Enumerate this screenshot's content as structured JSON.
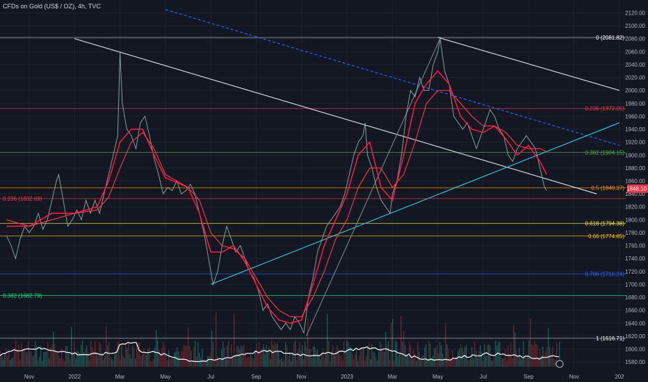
{
  "header": {
    "title": "CFDs on Gold (US$ / OZ), 4h, TVC"
  },
  "chart_data": {
    "type": "line",
    "title": "CFDs on Gold (US$ / OZ), 4h, TVC",
    "xlabel": "",
    "ylabel": "",
    "ylim": [
      1570,
      2130
    ],
    "y_ticks": [
      1580,
      1600,
      1620,
      1640,
      1660,
      1680,
      1700,
      1720,
      1740,
      1760,
      1780,
      1800,
      1820,
      1840,
      1860,
      1880,
      1900,
      1920,
      1940,
      1960,
      1980,
      2000,
      2020,
      2040,
      2060,
      2080,
      2100,
      2120
    ],
    "x_ticks": [
      {
        "label": "Nov",
        "t": 0.0
      },
      {
        "label": "2022",
        "t": 2.0
      },
      {
        "label": "Mar",
        "t": 4.0
      },
      {
        "label": "May",
        "t": 6.0
      },
      {
        "label": "Jul",
        "t": 8.0
      },
      {
        "label": "Sep",
        "t": 10.0
      },
      {
        "label": "Nov",
        "t": 12.0
      },
      {
        "label": "2023",
        "t": 14.0
      },
      {
        "label": "Mar",
        "t": 16.0
      },
      {
        "label": "May",
        "t": 18.0
      },
      {
        "label": "Jul",
        "t": 20.0
      },
      {
        "label": "Sep",
        "t": 22.0
      },
      {
        "label": "Nov",
        "t": 24.0
      },
      {
        "label": "202",
        "t": 26.0
      }
    ],
    "series": [
      {
        "type": "price",
        "values": [
          [
            -1.0,
            1775
          ],
          [
            -0.8,
            1760
          ],
          [
            -0.6,
            1740
          ],
          [
            -0.4,
            1770
          ],
          [
            -0.2,
            1790
          ],
          [
            0.0,
            1780
          ],
          [
            0.2,
            1790
          ],
          [
            0.4,
            1810
          ],
          [
            0.6,
            1785
          ],
          [
            0.8,
            1800
          ],
          [
            1.0,
            1830
          ],
          [
            1.2,
            1860
          ],
          [
            1.3,
            1870
          ],
          [
            1.5,
            1830
          ],
          [
            1.7,
            1790
          ],
          [
            1.9,
            1800
          ],
          [
            2.1,
            1815
          ],
          [
            2.3,
            1800
          ],
          [
            2.5,
            1830
          ],
          [
            2.7,
            1810
          ],
          [
            2.9,
            1830
          ],
          [
            3.1,
            1810
          ],
          [
            3.3,
            1840
          ],
          [
            3.5,
            1870
          ],
          [
            3.7,
            1900
          ],
          [
            3.9,
            1930
          ],
          [
            4.0,
            2060
          ],
          [
            4.1,
            1980
          ],
          [
            4.3,
            1940
          ],
          [
            4.5,
            1930
          ],
          [
            4.7,
            1910
          ],
          [
            4.9,
            1950
          ],
          [
            5.1,
            1960
          ],
          [
            5.3,
            1930
          ],
          [
            5.5,
            1895
          ],
          [
            5.7,
            1870
          ],
          [
            5.9,
            1840
          ],
          [
            6.1,
            1850
          ],
          [
            6.3,
            1845
          ],
          [
            6.5,
            1860
          ],
          [
            6.7,
            1840
          ],
          [
            6.9,
            1845
          ],
          [
            7.1,
            1855
          ],
          [
            7.3,
            1840
          ],
          [
            7.5,
            1810
          ],
          [
            7.7,
            1780
          ],
          [
            7.9,
            1740
          ],
          [
            8.1,
            1700
          ],
          [
            8.3,
            1720
          ],
          [
            8.5,
            1760
          ],
          [
            8.7,
            1790
          ],
          [
            8.9,
            1770
          ],
          [
            9.1,
            1750
          ],
          [
            9.3,
            1760
          ],
          [
            9.5,
            1740
          ],
          [
            9.7,
            1720
          ],
          [
            9.9,
            1710
          ],
          [
            10.1,
            1690
          ],
          [
            10.3,
            1660
          ],
          [
            10.5,
            1670
          ],
          [
            10.7,
            1650
          ],
          [
            10.9,
            1640
          ],
          [
            11.1,
            1630
          ],
          [
            11.3,
            1640
          ],
          [
            11.5,
            1630
          ],
          [
            11.7,
            1650
          ],
          [
            11.9,
            1640
          ],
          [
            12.1,
            1625
          ],
          [
            12.3,
            1680
          ],
          [
            12.5,
            1710
          ],
          [
            12.7,
            1750
          ],
          [
            12.9,
            1770
          ],
          [
            13.1,
            1790
          ],
          [
            13.3,
            1800
          ],
          [
            13.5,
            1810
          ],
          [
            13.7,
            1820
          ],
          [
            13.9,
            1840
          ],
          [
            14.1,
            1870
          ],
          [
            14.3,
            1900
          ],
          [
            14.5,
            1920
          ],
          [
            14.7,
            1930
          ],
          [
            14.8,
            1950
          ],
          [
            14.9,
            1900
          ],
          [
            15.1,
            1880
          ],
          [
            15.3,
            1850
          ],
          [
            15.5,
            1830
          ],
          [
            15.7,
            1820
          ],
          [
            15.9,
            1810
          ],
          [
            16.0,
            1840
          ],
          [
            16.2,
            1860
          ],
          [
            16.4,
            1900
          ],
          [
            16.6,
            1960
          ],
          [
            16.8,
            2000
          ],
          [
            17.0,
            1990
          ],
          [
            17.2,
            2020
          ],
          [
            17.4,
            2000
          ],
          [
            17.6,
            2000
          ],
          [
            17.8,
            2040
          ],
          [
            18.0,
            2060
          ],
          [
            18.1,
            2080
          ],
          [
            18.3,
            2030
          ],
          [
            18.5,
            2010
          ],
          [
            18.7,
            1960
          ],
          [
            18.9,
            1950
          ],
          [
            19.1,
            1940
          ],
          [
            19.3,
            1950
          ],
          [
            19.5,
            1930
          ],
          [
            19.7,
            1910
          ],
          [
            19.9,
            1930
          ],
          [
            20.1,
            1950
          ],
          [
            20.3,
            1970
          ],
          [
            20.5,
            1960
          ],
          [
            20.7,
            1940
          ],
          [
            20.9,
            1930
          ],
          [
            21.1,
            1900
          ],
          [
            21.3,
            1890
          ],
          [
            21.5,
            1910
          ],
          [
            21.7,
            1920
          ],
          [
            21.9,
            1930
          ],
          [
            22.1,
            1920
          ],
          [
            22.3,
            1910
          ],
          [
            22.5,
            1880
          ],
          [
            22.7,
            1850
          ],
          [
            22.8,
            1845
          ]
        ]
      },
      {
        "type": "moving-average-fast",
        "values": [
          [
            -1.0,
            1790
          ],
          [
            0.0,
            1790
          ],
          [
            1.0,
            1810
          ],
          [
            2.0,
            1810
          ],
          [
            3.0,
            1820
          ],
          [
            3.5,
            1860
          ],
          [
            4.0,
            1920
          ],
          [
            4.5,
            1940
          ],
          [
            5.0,
            1940
          ],
          [
            5.5,
            1900
          ],
          [
            6.0,
            1865
          ],
          [
            7.0,
            1850
          ],
          [
            7.5,
            1810
          ],
          [
            8.0,
            1750
          ],
          [
            8.5,
            1750
          ],
          [
            9.0,
            1760
          ],
          [
            9.5,
            1735
          ],
          [
            10.0,
            1700
          ],
          [
            10.5,
            1665
          ],
          [
            11.0,
            1645
          ],
          [
            11.5,
            1640
          ],
          [
            12.0,
            1645
          ],
          [
            12.5,
            1700
          ],
          [
            13.0,
            1760
          ],
          [
            13.5,
            1800
          ],
          [
            14.0,
            1840
          ],
          [
            14.5,
            1900
          ],
          [
            15.0,
            1920
          ],
          [
            15.5,
            1850
          ],
          [
            16.0,
            1830
          ],
          [
            16.5,
            1900
          ],
          [
            17.0,
            1980
          ],
          [
            17.5,
            2010
          ],
          [
            18.0,
            2030
          ],
          [
            18.5,
            2010
          ],
          [
            19.0,
            1960
          ],
          [
            19.5,
            1940
          ],
          [
            20.0,
            1935
          ],
          [
            20.5,
            1945
          ],
          [
            21.0,
            1925
          ],
          [
            21.5,
            1900
          ],
          [
            22.0,
            1915
          ],
          [
            22.5,
            1890
          ],
          [
            22.8,
            1870
          ]
        ]
      },
      {
        "type": "moving-average-slow",
        "values": [
          [
            -1.0,
            1800
          ],
          [
            0.0,
            1790
          ],
          [
            1.0,
            1800
          ],
          [
            2.0,
            1810
          ],
          [
            3.0,
            1815
          ],
          [
            3.5,
            1835
          ],
          [
            4.0,
            1880
          ],
          [
            4.5,
            1920
          ],
          [
            5.0,
            1935
          ],
          [
            5.5,
            1910
          ],
          [
            6.0,
            1870
          ],
          [
            7.0,
            1850
          ],
          [
            7.5,
            1830
          ],
          [
            8.0,
            1780
          ],
          [
            8.5,
            1760
          ],
          [
            9.0,
            1755
          ],
          [
            9.5,
            1740
          ],
          [
            10.0,
            1710
          ],
          [
            10.5,
            1680
          ],
          [
            11.0,
            1660
          ],
          [
            11.5,
            1650
          ],
          [
            12.0,
            1650
          ],
          [
            12.5,
            1680
          ],
          [
            13.0,
            1720
          ],
          [
            13.5,
            1770
          ],
          [
            14.0,
            1800
          ],
          [
            14.5,
            1850
          ],
          [
            15.0,
            1880
          ],
          [
            15.5,
            1880
          ],
          [
            16.0,
            1850
          ],
          [
            16.5,
            1870
          ],
          [
            17.0,
            1920
          ],
          [
            17.5,
            1980
          ],
          [
            18.0,
            2000
          ],
          [
            18.5,
            2000
          ],
          [
            19.0,
            1980
          ],
          [
            19.5,
            1960
          ],
          [
            20.0,
            1945
          ],
          [
            20.5,
            1945
          ],
          [
            21.0,
            1935
          ],
          [
            21.5,
            1915
          ],
          [
            22.0,
            1910
          ],
          [
            22.5,
            1910
          ],
          [
            22.8,
            1905
          ]
        ]
      }
    ],
    "fib_levels": [
      {
        "label": "0 (2081.82)",
        "value": 2081.82,
        "color": "#b2b5be",
        "text_color": "#ffffff",
        "side": "right"
      },
      {
        "label": "0.236 (1972.05)",
        "value": 1972.05,
        "color": "#f23645",
        "text_color": "#f23645",
        "side": "right"
      },
      {
        "label": "0.382 (1904.15)",
        "value": 1904.15,
        "color": "#4caf50",
        "text_color": "#4caf50",
        "side": "right"
      },
      {
        "label": "0.5 (1849.37)",
        "value": 1849.37,
        "color": "#ff9800",
        "text_color": "#ff9800",
        "side": "right"
      },
      {
        "label": "0.236 (1832.69)",
        "value": 1832.69,
        "color": "#f23645",
        "text_color": "#f23645",
        "side": "left"
      },
      {
        "label": "0.618 (1794.38)",
        "value": 1794.38,
        "color": "#ffeb3b",
        "text_color": "#ffeb3b",
        "side": "right"
      },
      {
        "label": "0.66 (1774.85)",
        "value": 1774.85,
        "color": "#ffc107",
        "text_color": "#ffc107",
        "side": "right"
      },
      {
        "label": "0.786 (1716.24)",
        "value": 1716.24,
        "color": "#2962ff",
        "text_color": "#2962ff",
        "side": "right"
      },
      {
        "label": "0.382 (1682.79)",
        "value": 1682.79,
        "color": "#00e676",
        "text_color": "#00e676",
        "side": "left"
      },
      {
        "label": "1 (1616.71)",
        "value": 1616.71,
        "color": "#b2b5be",
        "text_color": "#ffffff",
        "side": "right"
      }
    ],
    "trendlines": [
      {
        "name": "upper-channel-line",
        "color": "#d1d4dc",
        "dash": false,
        "from": [
          18.0,
          2082
        ],
        "to": [
          26.0,
          2000
        ]
      },
      {
        "name": "upper-dashed-line",
        "color": "#2962ff",
        "dash": true,
        "from": [
          6.0,
          2125
        ],
        "to": [
          26.0,
          1915
        ]
      },
      {
        "name": "mid-channel-line",
        "color": "#d1d4dc",
        "dash": false,
        "from": [
          2.0,
          2080
        ],
        "to": [
          25.0,
          1840
        ]
      },
      {
        "name": "rising-support-line",
        "color": "#26c6da",
        "dash": false,
        "from": [
          8.0,
          1700
        ],
        "to": [
          26.0,
          1950
        ]
      },
      {
        "name": "thin-rising-line",
        "color": "#787b86",
        "dash": false,
        "from": [
          12.2,
          1620
        ],
        "to": [
          18.1,
          2080
        ]
      }
    ],
    "last_price": {
      "label": "1848.10",
      "value": 1848.1,
      "color": "#f23645"
    }
  }
}
